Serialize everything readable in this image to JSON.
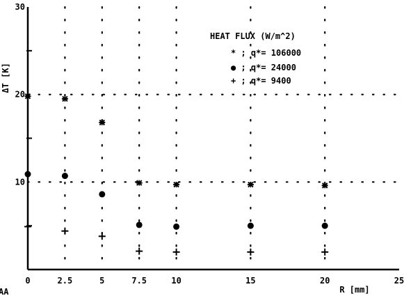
{
  "chart_data": {
    "type": "scatter",
    "title": "",
    "xlabel": "R [mm]",
    "ylabel": "ΔT [K]",
    "xlim": [
      0,
      25
    ],
    "ylim": [
      0,
      30
    ],
    "x_ticks": [
      0,
      2.5,
      5,
      7.5,
      10,
      15,
      20,
      25
    ],
    "x_tick_labels": [
      "0",
      "2.5",
      "5",
      "7.5",
      "10",
      "15",
      "20",
      "25"
    ],
    "y_ticks": [
      10,
      20,
      30
    ],
    "y_tick_labels": [
      "10",
      "20",
      "30"
    ],
    "grid": true,
    "legend_position": "top-right",
    "legend_title": "HEAT FLUX (W/m^2)",
    "series": [
      {
        "name": "q*= 106000",
        "legend_label": "* ; q*= 106000",
        "marker": "asterisk",
        "x": [
          0,
          2.5,
          5,
          7.5,
          10,
          15,
          20
        ],
        "y": [
          19.8,
          19.5,
          16.8,
          9.9,
          9.7,
          9.7,
          9.6
        ]
      },
      {
        "name": "q*= 24000",
        "legend_label": "● ; q*= 24000",
        "marker": "circle",
        "x": [
          0,
          2.5,
          5,
          7.5,
          10,
          15,
          20
        ],
        "y": [
          10.9,
          10.7,
          8.6,
          5.1,
          4.9,
          5.0,
          5.0
        ]
      },
      {
        "name": "q*= 9400",
        "legend_label": "+ ; q*= 9400",
        "marker": "plus",
        "x": [
          0,
          2.5,
          5,
          7.5,
          10,
          15,
          20
        ],
        "y": [
          4.9,
          4.4,
          3.8,
          2.1,
          2.0,
          2.0,
          2.0
        ]
      }
    ],
    "corner_text": "AA"
  }
}
